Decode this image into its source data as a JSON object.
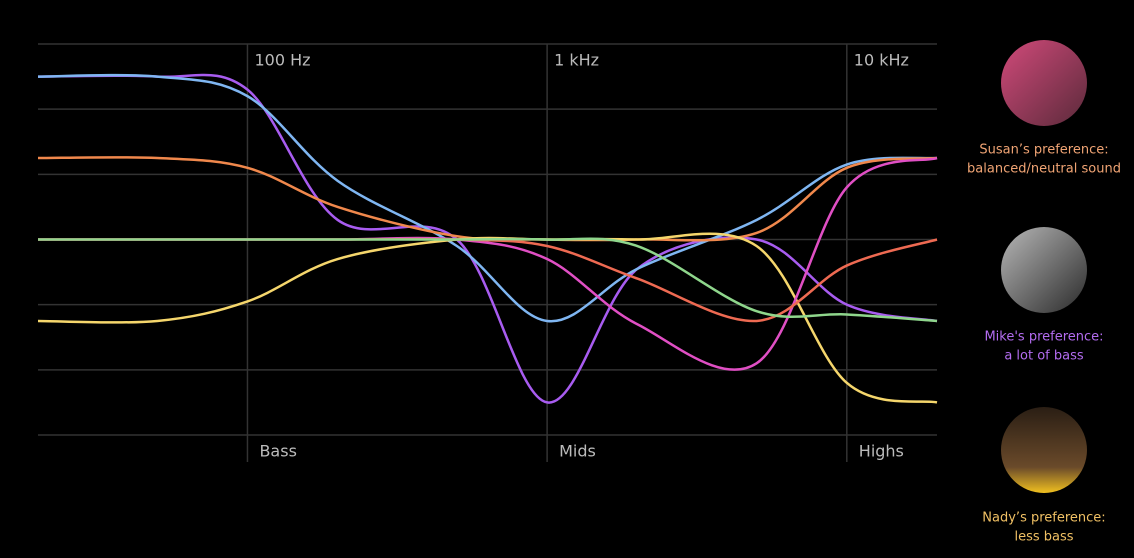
{
  "chart_data": {
    "type": "line",
    "x": [
      20,
      50,
      100,
      200,
      500,
      1000,
      2000,
      5000,
      10000,
      20000
    ],
    "xlim": [
      20,
      20000
    ],
    "xscale": "log",
    "xticks": [
      {
        "value": 100,
        "label": "100 Hz"
      },
      {
        "value": 1000,
        "label": "1 kHz"
      },
      {
        "value": 10000,
        "label": "10 kHz"
      }
    ],
    "bands": [
      "Bass",
      "Mids",
      "Highs"
    ],
    "ylim": [
      -3,
      3
    ],
    "grid": true,
    "series": [
      {
        "color": "#a85cf0",
        "values": [
          2.5,
          2.5,
          2.3,
          0.3,
          0,
          -2.5,
          -0.45,
          0,
          -1.0,
          -1.25
        ]
      },
      {
        "color": "#7fb6f2",
        "values": [
          2.5,
          2.5,
          2.2,
          0.9,
          -0.1,
          -1.25,
          -0.45,
          0.3,
          1.15,
          1.25
        ]
      },
      {
        "color": "#f0884c",
        "values": [
          1.25,
          1.25,
          1.1,
          0.5,
          0.05,
          0,
          0,
          0.1,
          1.1,
          1.25
        ]
      },
      {
        "color": "#f5d66c",
        "values": [
          -1.25,
          -1.25,
          -0.95,
          -0.3,
          0,
          0,
          0,
          -0.1,
          -2.2,
          -2.5
        ]
      },
      {
        "color": "#e04fc4",
        "values": [
          0,
          0,
          0,
          0,
          0,
          -0.3,
          -1.3,
          -1.9,
          0.8,
          1.25
        ]
      },
      {
        "color": "#ee6a52",
        "values": [
          0,
          0,
          0,
          0,
          0,
          -0.1,
          -0.6,
          -1.25,
          -0.4,
          0
        ]
      },
      {
        "color": "#8fd68c",
        "values": [
          0,
          0,
          0,
          0,
          0,
          0,
          -0.1,
          -1.1,
          -1.15,
          -1.25
        ]
      }
    ]
  },
  "profiles": [
    {
      "line1": "Susan’s preference:",
      "line2": "balanced/neutral sound",
      "color": "#f0a474"
    },
    {
      "line1": "Mike's preference:",
      "line2": "a lot of bass",
      "color": "#b36cf0"
    },
    {
      "line1": "Nady’s preference:",
      "line2": "less bass",
      "color": "#f0c064"
    }
  ]
}
